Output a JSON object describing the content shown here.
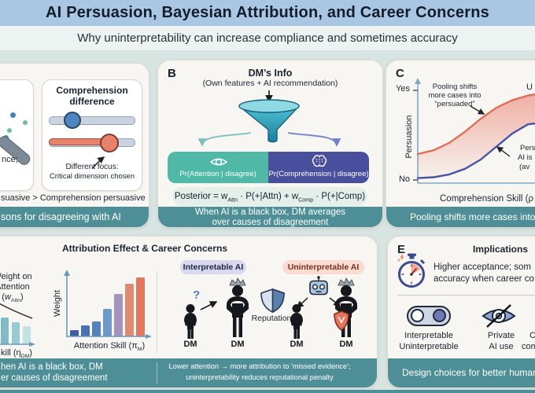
{
  "header": {
    "title": "AI Persuasion, Bayesian Attribution, and Career Concerns",
    "subtitle": "Why uninterpretability can increase compliance and sometimes accuracy"
  },
  "panel_a": {
    "card_attention": {
      "caption_fragment": "nce;"
    },
    "card_comprehension": {
      "title_line1": "Comprehension",
      "title_line2": "difference",
      "annotation_line1": "Different focus:",
      "annotation_line2": "Critical dimension chosen"
    },
    "caption_fragment": "suasive > Comprehension persuasive",
    "footer_fragment": "sons for disagreeing with AI"
  },
  "panel_b": {
    "label": "B",
    "title": "DM’s Info",
    "subtitle": "(Own features + AI recommendation)",
    "attention_box": "Pr(Attention | disagree)",
    "comprehension_box": "Pr(Comprehension | disagree)",
    "formula_segments": [
      {
        "t": "Posterior = w"
      },
      {
        "t": "Attn",
        "sub": true
      },
      {
        "t": " · P(+|Attn) + w"
      },
      {
        "t": "Comp",
        "sub": true
      },
      {
        "t": " · P(+|Comp)"
      }
    ],
    "footer_line1": "When AI is a black box, DM averages",
    "footer_line2": "over causes of disagreement"
  },
  "panel_c": {
    "label": "C",
    "ytick_top": "Yes",
    "ytick_bottom": "No",
    "ylabel": "Persuasion",
    "xlabel_fragment": "Comprehension Skill (ρ",
    "annotation_pooling": [
      "Pooling shifts",
      "more cases into",
      "“persuaded”"
    ],
    "fragment_top_right": "U",
    "fragment_right": [
      "Pers",
      "AI is",
      "(av"
    ],
    "footer_fragment": "Pooling shifts more cases into '"
  },
  "panel_d": {
    "title": "Attribution Effect & Career Concerns",
    "left_chart": {
      "label_line1": "Weight on",
      "label_line2": "Attention",
      "label_line3_segments": [
        {
          "t": "("
        },
        {
          "t": "w",
          "it": true
        },
        {
          "t": "Attn",
          "sub": true
        },
        {
          "t": ")"
        }
      ],
      "xlabel_segments": [
        {
          "t": "kill (η"
        },
        {
          "t": "DM",
          "sub": true
        },
        {
          "t": ")"
        }
      ]
    },
    "mid_chart": {
      "ylabel": "Weight",
      "xlabel_segments": [
        {
          "t": "Attention Skill (π"
        },
        {
          "t": "M",
          "sub": true
        },
        {
          "t": ")"
        }
      ]
    },
    "badge_interpretable": "Interpretable AI",
    "badge_uninterpretable": "Uninterpretable AI",
    "question_mark": "?",
    "reputation_label": "Reputation",
    "dm_labels": [
      "DM",
      "DM",
      "DM",
      "DM"
    ],
    "footer_left_line1": "hen AI is a black box, DM",
    "footer_left_line2": "er causes of disagreement",
    "footer_right_line1": "Lower attention → more attribution to 'missed evidence';",
    "footer_right_line2": "uninterpretability reduces reputational penalty"
  },
  "panel_e": {
    "label": "E",
    "title": "Implications",
    "text_line1": "Higher acceptance; som",
    "text_line2": "accuracy when career co",
    "toggle_label_line1": "Interpretable",
    "toggle_label_line2": "Uninterpretable",
    "eye_label_line1": "Private",
    "eye_label_line2": "AI use",
    "fragment_line1": "C",
    "fragment_line2": "com",
    "footer_fragment": "Design choices for better human–"
  },
  "colors": {
    "header_band": "#a9c6e3",
    "subtitle_band": "#edf3f0",
    "background": "#d8e4e1",
    "panel_bg": "#f7f6f2",
    "footer_teal": "#4e8f97",
    "attention_teal": "#4fb8a6",
    "comprehension_indigo": "#4a4f9d",
    "salmon": "#e8826d",
    "blue": "#4f86c2",
    "red_curve": "#dd6f5a",
    "blue_curve": "#4753a5"
  },
  "chart_data": [
    {
      "id": "persuasion-pooling",
      "type": "line",
      "ylabel": "Persuasion",
      "yticks": [
        "No",
        "Yes"
      ],
      "xlabel_fragment": "Comprehension Skill (ρ",
      "ylim": [
        0,
        1
      ],
      "legend_position": "none",
      "series": [
        {
          "name": "pooled persuasion (upper, red)",
          "color": "#dd6f5a",
          "points": [
            [
              0,
              0.28
            ],
            [
              0.1,
              0.32
            ],
            [
              0.2,
              0.4
            ],
            [
              0.3,
              0.52
            ],
            [
              0.4,
              0.66
            ],
            [
              0.5,
              0.78
            ],
            [
              0.6,
              0.86
            ],
            [
              0.7,
              0.91
            ],
            [
              0.8,
              0.94
            ],
            [
              0.9,
              0.955
            ],
            [
              1,
              0.96
            ]
          ]
        },
        {
          "name": "interpretable persuasion (lower, blue)",
          "color": "#4753a5",
          "points": [
            [
              0,
              0.02
            ],
            [
              0.1,
              0.03
            ],
            [
              0.2,
              0.06
            ],
            [
              0.3,
              0.12
            ],
            [
              0.4,
              0.22
            ],
            [
              0.5,
              0.36
            ],
            [
              0.6,
              0.5
            ],
            [
              0.7,
              0.6
            ],
            [
              0.8,
              0.62
            ],
            [
              0.9,
              0.66
            ],
            [
              1,
              0.68
            ]
          ]
        }
      ]
    },
    {
      "id": "attention-weight-by-skill",
      "type": "bar",
      "xlabel_fragment": "kill (η_DM)",
      "values": [
        40,
        34,
        28,
        23
      ],
      "colors": [
        "#68adbc",
        "#7fbcc6",
        "#98cbd1",
        "#c2e1e2"
      ]
    },
    {
      "id": "weight-by-attention-skill",
      "type": "bar",
      "ylabel": "Weight",
      "xlabel": "Attention Skill (π_M)",
      "values": [
        8,
        14,
        19,
        35,
        54,
        67,
        75
      ],
      "colors": [
        "#3f5f9e",
        "#4a72b0",
        "#5581bd",
        "#6d9ac9",
        "#a693bb",
        "#df8a73",
        "#e3775d"
      ]
    }
  ]
}
